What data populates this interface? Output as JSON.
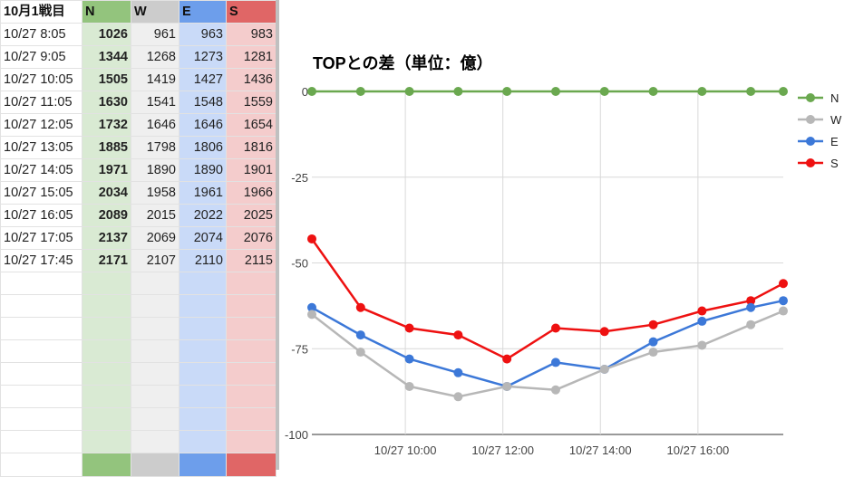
{
  "sheet": {
    "header": [
      "10月1戦目",
      "N",
      "W",
      "E",
      "S"
    ],
    "rows": [
      [
        "10/27 8:05",
        "1026",
        "961",
        "963",
        "983"
      ],
      [
        "10/27 9:05",
        "1344",
        "1268",
        "1273",
        "1281"
      ],
      [
        "10/27 10:05",
        "1505",
        "1419",
        "1427",
        "1436"
      ],
      [
        "10/27 11:05",
        "1630",
        "1541",
        "1548",
        "1559"
      ],
      [
        "10/27 12:05",
        "1732",
        "1646",
        "1646",
        "1654"
      ],
      [
        "10/27 13:05",
        "1885",
        "1798",
        "1806",
        "1816"
      ],
      [
        "10/27 14:05",
        "1971",
        "1890",
        "1890",
        "1901"
      ],
      [
        "10/27 15:05",
        "2034",
        "1958",
        "1961",
        "1966"
      ],
      [
        "10/27 16:05",
        "2089",
        "2015",
        "2022",
        "2025"
      ],
      [
        "10/27 17:05",
        "2137",
        "2069",
        "2074",
        "2076"
      ],
      [
        "10/27 17:45",
        "2171",
        "2107",
        "2110",
        "2115"
      ]
    ],
    "header_colors": {
      "N": "#93c47d",
      "W": "#cccccc",
      "E": "#6d9eeb",
      "S": "#e06666"
    }
  },
  "chart_data": {
    "type": "line",
    "title": "TOPとの差（単位：億）",
    "x": [
      "10/27 8:05",
      "10/27 9:05",
      "10/27 10:05",
      "10/27 11:05",
      "10/27 12:05",
      "10/27 13:05",
      "10/27 14:05",
      "10/27 15:05",
      "10/27 16:05",
      "10/27 17:05",
      "10/27 17:45"
    ],
    "x_minutes": [
      485,
      545,
      605,
      665,
      725,
      785,
      845,
      905,
      965,
      1025,
      1065
    ],
    "xticks": [
      {
        "label": "10/27 10:00",
        "minutes": 600
      },
      {
        "label": "10/27 12:00",
        "minutes": 720
      },
      {
        "label": "10/27 14:00",
        "minutes": 840
      },
      {
        "label": "10/27 16:00",
        "minutes": 960
      }
    ],
    "ylim": [
      -100,
      0
    ],
    "yticks": [
      0,
      -25,
      -50,
      -75,
      -100
    ],
    "grid": true,
    "legend_position": "right",
    "series": [
      {
        "name": "N",
        "color": "#6aa84f",
        "values": [
          0,
          0,
          0,
          0,
          0,
          0,
          0,
          0,
          0,
          0,
          0
        ]
      },
      {
        "name": "W",
        "color": "#b7b7b7",
        "values": [
          -65,
          -76,
          -86,
          -89,
          -86,
          -87,
          -81,
          -76,
          -74,
          -68,
          -64
        ]
      },
      {
        "name": "E",
        "color": "#3c78d8",
        "values": [
          -63,
          -71,
          -78,
          -82,
          -86,
          -79,
          -81,
          -73,
          -67,
          -63,
          -61
        ]
      },
      {
        "name": "S",
        "color": "#ee1111",
        "values": [
          -43,
          -63,
          -69,
          -71,
          -78,
          -69,
          -70,
          -68,
          -64,
          -61,
          -56
        ]
      }
    ]
  }
}
